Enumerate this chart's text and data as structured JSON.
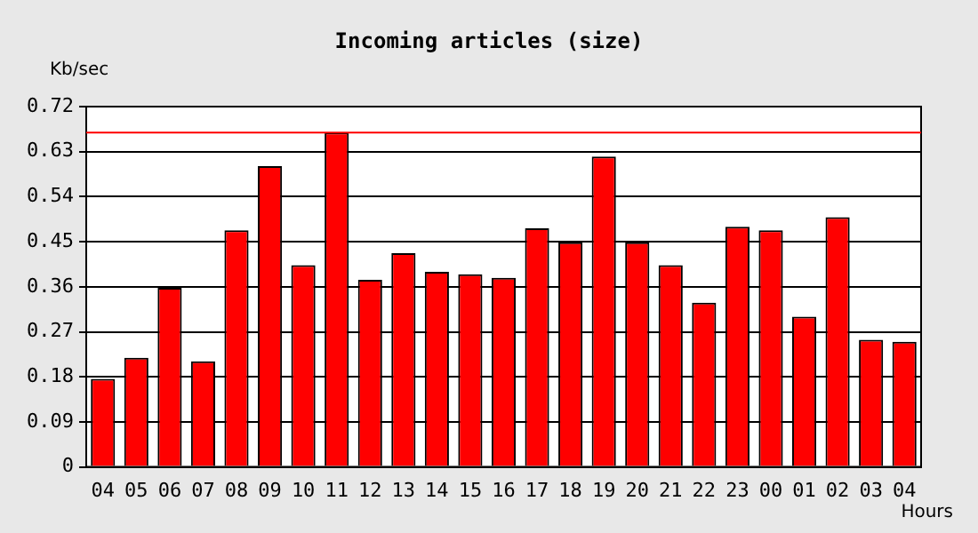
{
  "chart_data": {
    "type": "bar",
    "title": "Incoming articles (size)",
    "ylabel": "Kb/sec",
    "xlabel": "Hours",
    "categories": [
      "04",
      "05",
      "06",
      "07",
      "08",
      "09",
      "10",
      "11",
      "12",
      "13",
      "14",
      "15",
      "16",
      "17",
      "18",
      "19",
      "20",
      "21",
      "22",
      "23",
      "00",
      "01",
      "02",
      "03",
      "04"
    ],
    "values": [
      0.176,
      0.218,
      0.358,
      0.211,
      0.473,
      0.601,
      0.403,
      0.668,
      0.374,
      0.427,
      0.39,
      0.385,
      0.378,
      0.477,
      0.449,
      0.62,
      0.449,
      0.403,
      0.328,
      0.48,
      0.473,
      0.3,
      0.499,
      0.254,
      0.25
    ],
    "color": "#ff0000",
    "ylim": [
      0,
      0.72
    ],
    "yticks": [
      "0",
      0.09,
      0.18,
      0.27,
      0.36,
      0.45,
      0.54,
      0.63,
      0.72
    ],
    "ref_lines": [
      {
        "axis": "y",
        "value": 0.668,
        "color": "#ff0000"
      }
    ],
    "grid": "y",
    "legend": false
  }
}
